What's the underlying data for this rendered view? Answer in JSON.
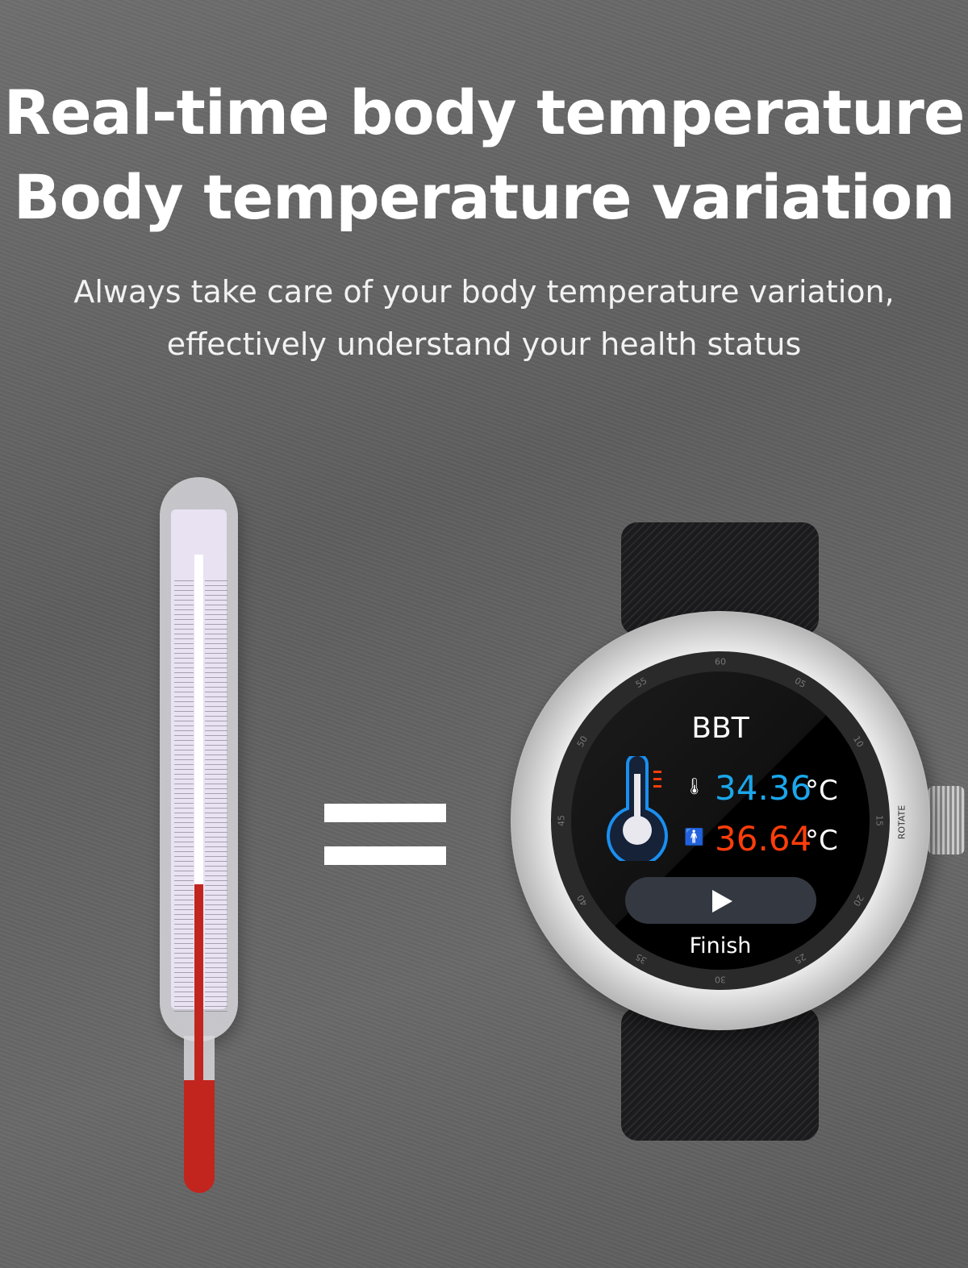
{
  "heading": {
    "line1": "Real-time body temperature",
    "line2": "Body temperature variation"
  },
  "subheading": {
    "line1": "Always take care of your body temperature variation,",
    "line2": "effectively understand your health status"
  },
  "equals_sign": "=",
  "thermometer": {
    "fill_level_percent": 42,
    "color": "#c1251e"
  },
  "watch": {
    "bezel_marks": [
      "60",
      "05",
      "10",
      "15",
      "20",
      "25",
      "30",
      "35",
      "40",
      "45",
      "50",
      "55"
    ],
    "crown_label": "ROTATE",
    "screen": {
      "title": "BBT",
      "surface_temp": {
        "value": "34.36",
        "unit": "°C",
        "color": "#1aa7ec",
        "icon": "thermometer-icon"
      },
      "body_temp": {
        "value": "36.64",
        "unit": "°C",
        "color": "#ff3d0a",
        "icon": "person-temperature-icon"
      },
      "play_icon": "play-icon",
      "finish_label": "Finish"
    }
  }
}
